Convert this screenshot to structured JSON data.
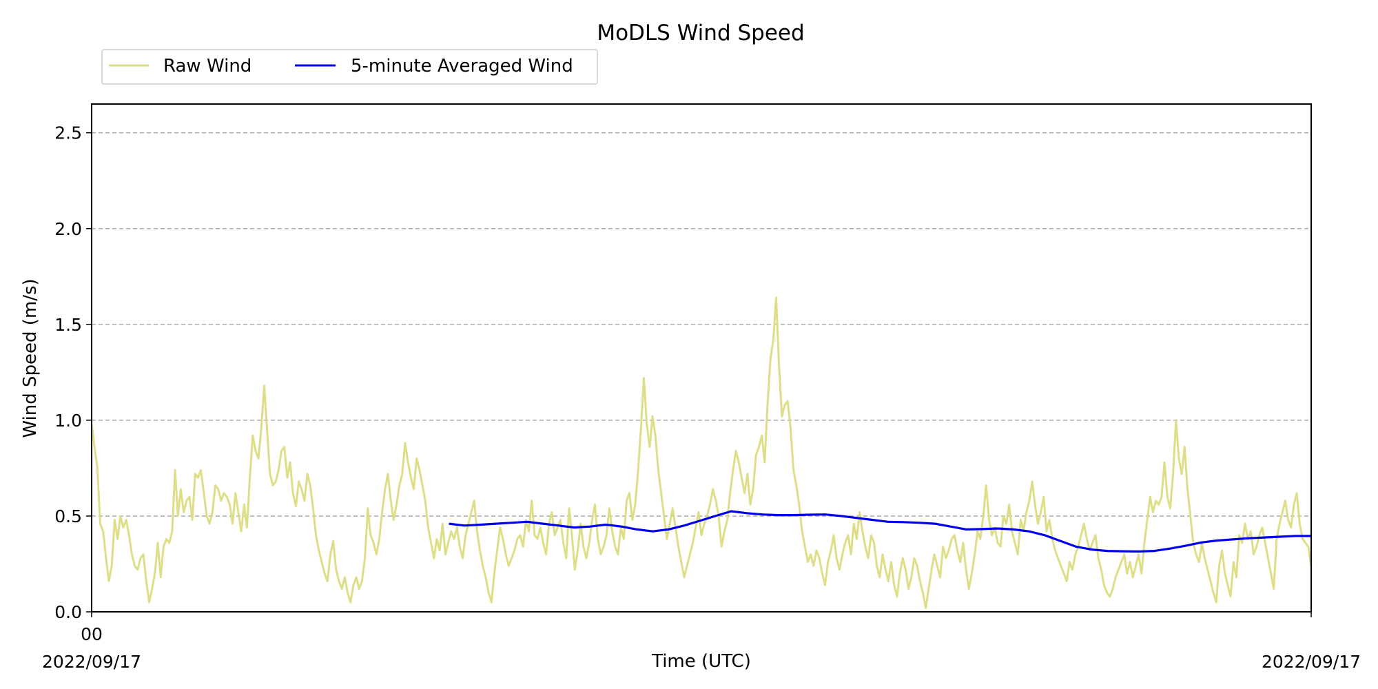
{
  "chart_data": {
    "type": "line",
    "title": "MoDLS Wind Speed",
    "xlabel": "Time (UTC)",
    "ylabel": "Wind Speed (m/s)",
    "ylim": [
      0,
      2.65
    ],
    "yticks": [
      "0.0",
      "0.5",
      "1.0",
      "1.5",
      "2.0",
      "2.5"
    ],
    "xtick_labels": {
      "start_hour": "00",
      "start_date": "2022/09/17",
      "end_date": "2022/09/17"
    },
    "grid": "y-dashed",
    "legend": "above-left",
    "colors": {
      "raw": "#dcdc82",
      "avg": "#0000ee"
    },
    "series": [
      {
        "name": "Raw Wind",
        "values": [
          0.98,
          0.86,
          0.75,
          0.46,
          0.42,
          0.28,
          0.16,
          0.24,
          0.48,
          0.38,
          0.5,
          0.44,
          0.48,
          0.4,
          0.3,
          0.24,
          0.22,
          0.28,
          0.3,
          0.16,
          0.05,
          0.12,
          0.2,
          0.36,
          0.18,
          0.34,
          0.38,
          0.36,
          0.42,
          0.74,
          0.5,
          0.64,
          0.52,
          0.58,
          0.6,
          0.48,
          0.72,
          0.7,
          0.74,
          0.62,
          0.5,
          0.46,
          0.52,
          0.66,
          0.64,
          0.58,
          0.62,
          0.6,
          0.56,
          0.46,
          0.62,
          0.52,
          0.42,
          0.56,
          0.44,
          0.7,
          0.92,
          0.84,
          0.8,
          0.96,
          1.18,
          0.95,
          0.72,
          0.66,
          0.68,
          0.74,
          0.84,
          0.86,
          0.7,
          0.78,
          0.62,
          0.55,
          0.68,
          0.64,
          0.58,
          0.72,
          0.66,
          0.54,
          0.4,
          0.32,
          0.26,
          0.2,
          0.16,
          0.3,
          0.37,
          0.22,
          0.16,
          0.12,
          0.18,
          0.1,
          0.05,
          0.14,
          0.18,
          0.12,
          0.16,
          0.28,
          0.54,
          0.4,
          0.36,
          0.3,
          0.38,
          0.52,
          0.64,
          0.72,
          0.58,
          0.48,
          0.56,
          0.66,
          0.72,
          0.88,
          0.78,
          0.7,
          0.64,
          0.8,
          0.74,
          0.66,
          0.58,
          0.44,
          0.36,
          0.28,
          0.38,
          0.32,
          0.46,
          0.3,
          0.36,
          0.42,
          0.38,
          0.44,
          0.34,
          0.28,
          0.4,
          0.46,
          0.52,
          0.58,
          0.42,
          0.32,
          0.24,
          0.18,
          0.1,
          0.05,
          0.2,
          0.32,
          0.44,
          0.38,
          0.3,
          0.24,
          0.28,
          0.32,
          0.38,
          0.4,
          0.34,
          0.48,
          0.42,
          0.58,
          0.4,
          0.38,
          0.44,
          0.36,
          0.3,
          0.46,
          0.52,
          0.4,
          0.44,
          0.48,
          0.36,
          0.28,
          0.54,
          0.4,
          0.22,
          0.32,
          0.46,
          0.34,
          0.28,
          0.36,
          0.48,
          0.56,
          0.38,
          0.3,
          0.34,
          0.4,
          0.54,
          0.42,
          0.34,
          0.3,
          0.44,
          0.38,
          0.58,
          0.62,
          0.48,
          0.56,
          0.74,
          0.96,
          1.22,
          0.98,
          0.86,
          1.02,
          0.92,
          0.74,
          0.62,
          0.5,
          0.38,
          0.46,
          0.54,
          0.44,
          0.34,
          0.26,
          0.18,
          0.24,
          0.3,
          0.36,
          0.44,
          0.52,
          0.4,
          0.46,
          0.5,
          0.56,
          0.64,
          0.58,
          0.5,
          0.34,
          0.42,
          0.48,
          0.62,
          0.74,
          0.84,
          0.78,
          0.7,
          0.62,
          0.72,
          0.56,
          0.64,
          0.82,
          0.86,
          0.92,
          0.78,
          1.08,
          1.32,
          1.42,
          1.64,
          1.28,
          1.02,
          1.08,
          1.1,
          0.96,
          0.74,
          0.66,
          0.56,
          0.42,
          0.34,
          0.26,
          0.3,
          0.24,
          0.32,
          0.28,
          0.2,
          0.14,
          0.26,
          0.32,
          0.4,
          0.28,
          0.22,
          0.3,
          0.36,
          0.4,
          0.3,
          0.46,
          0.38,
          0.52,
          0.42,
          0.34,
          0.28,
          0.4,
          0.36,
          0.24,
          0.18,
          0.3,
          0.22,
          0.16,
          0.26,
          0.14,
          0.08,
          0.2,
          0.28,
          0.22,
          0.12,
          0.18,
          0.28,
          0.24,
          0.16,
          0.1,
          0.02,
          0.12,
          0.22,
          0.3,
          0.24,
          0.18,
          0.34,
          0.28,
          0.32,
          0.38,
          0.4,
          0.32,
          0.26,
          0.36,
          0.22,
          0.12,
          0.2,
          0.3,
          0.42,
          0.38,
          0.5,
          0.66,
          0.48,
          0.4,
          0.44,
          0.36,
          0.34,
          0.5,
          0.46,
          0.56,
          0.42,
          0.36,
          0.3,
          0.48,
          0.42,
          0.52,
          0.58,
          0.68,
          0.56,
          0.46,
          0.52,
          0.6,
          0.42,
          0.48,
          0.38,
          0.32,
          0.28,
          0.24,
          0.2,
          0.16,
          0.26,
          0.22,
          0.3,
          0.34,
          0.4,
          0.46,
          0.38,
          0.32,
          0.36,
          0.4,
          0.28,
          0.22,
          0.14,
          0.1,
          0.08,
          0.12,
          0.18,
          0.22,
          0.26,
          0.3,
          0.2,
          0.26,
          0.18,
          0.24,
          0.3,
          0.2,
          0.36,
          0.48,
          0.6,
          0.52,
          0.58,
          0.56,
          0.6,
          0.78,
          0.6,
          0.54,
          0.72,
          1.0,
          0.8,
          0.72,
          0.86,
          0.64,
          0.5,
          0.36,
          0.3,
          0.26,
          0.36,
          0.28,
          0.22,
          0.16,
          0.1,
          0.05,
          0.24,
          0.32,
          0.2,
          0.14,
          0.08,
          0.26,
          0.18,
          0.4,
          0.36,
          0.46,
          0.38,
          0.42,
          0.3,
          0.34,
          0.4,
          0.44,
          0.36,
          0.28,
          0.2,
          0.12,
          0.38,
          0.46,
          0.52,
          0.58,
          0.48,
          0.44,
          0.56,
          0.62,
          0.46,
          0.38,
          0.36,
          0.34,
          0.24
        ]
      },
      {
        "name": "5-minute Averaged Wind",
        "values": [
          0.46,
          0.45,
          0.455,
          0.46,
          0.465,
          0.47,
          0.46,
          0.45,
          0.44,
          0.445,
          0.455,
          0.445,
          0.43,
          0.42,
          0.43,
          0.45,
          0.475,
          0.5,
          0.525,
          0.515,
          0.508,
          0.505,
          0.505,
          0.507,
          0.508,
          0.5,
          0.49,
          0.48,
          0.47,
          0.468,
          0.465,
          0.46,
          0.445,
          0.43,
          0.432,
          0.435,
          0.43,
          0.42,
          0.4,
          0.37,
          0.34,
          0.325,
          0.318,
          0.316,
          0.315,
          0.318,
          0.33,
          0.345,
          0.362,
          0.372,
          0.378,
          0.384,
          0.388,
          0.392,
          0.396,
          0.396
        ]
      }
    ]
  }
}
